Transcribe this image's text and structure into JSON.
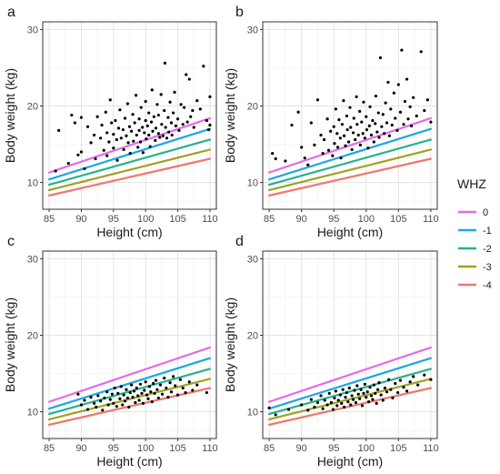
{
  "chart_data": [
    {
      "panel": "a",
      "type": "scatter",
      "xlabel": "Height (cm)",
      "ylabel": "Body weight (kg)",
      "xlim": [
        84,
        111
      ],
      "ylim": [
        6.5,
        31
      ],
      "xticks": [
        85,
        90,
        95,
        100,
        105,
        110
      ],
      "yticks": [
        10,
        20,
        30
      ],
      "grid": true,
      "points": [
        [
          86.5,
          16.8
        ],
        [
          86,
          11.5
        ],
        [
          88,
          12.5
        ],
        [
          88.5,
          18.8
        ],
        [
          89,
          17.8
        ],
        [
          89.5,
          13.6
        ],
        [
          90,
          18.5
        ],
        [
          90,
          14
        ],
        [
          90.5,
          11.8
        ],
        [
          91,
          17.3
        ],
        [
          91.5,
          15.2
        ],
        [
          92,
          16.2
        ],
        [
          92.2,
          13.1
        ],
        [
          92.5,
          18.6
        ],
        [
          93,
          15.8
        ],
        [
          93.2,
          17.5
        ],
        [
          93.5,
          14.2
        ],
        [
          93.8,
          19.2
        ],
        [
          94,
          16.5
        ],
        [
          94,
          13.5
        ],
        [
          94.3,
          15.3
        ],
        [
          94.5,
          20.8
        ],
        [
          94.7,
          17.8
        ],
        [
          95,
          16.3
        ],
        [
          95,
          14.5
        ],
        [
          95.3,
          18.1
        ],
        [
          95.5,
          15.6
        ],
        [
          95.6,
          12.9
        ],
        [
          95.8,
          17.1
        ],
        [
          96,
          19.5
        ],
        [
          96.2,
          15.8
        ],
        [
          96.5,
          16.9
        ],
        [
          96.6,
          14.3
        ],
        [
          96.8,
          18.4
        ],
        [
          97,
          16.1
        ],
        [
          97.2,
          20.3
        ],
        [
          97.3,
          15.2
        ],
        [
          97.5,
          17.3
        ],
        [
          97.6,
          13.8
        ],
        [
          97.8,
          16.7
        ],
        [
          98,
          18.9
        ],
        [
          98.1,
          15.4
        ],
        [
          98.3,
          17.8
        ],
        [
          98.5,
          21.4
        ],
        [
          98.6,
          16.2
        ],
        [
          98.8,
          14.6
        ],
        [
          99,
          18.3
        ],
        [
          99,
          16.8
        ],
        [
          99.2,
          15.3
        ],
        [
          99.3,
          19.8
        ],
        [
          99.5,
          17.2
        ],
        [
          99.6,
          13.9
        ],
        [
          99.8,
          16.5
        ],
        [
          100,
          20.6
        ],
        [
          100,
          18.1
        ],
        [
          100.1,
          15.7
        ],
        [
          100.3,
          17.4
        ],
        [
          100.5,
          19.1
        ],
        [
          100.5,
          16.2
        ],
        [
          100.7,
          14.7
        ],
        [
          100.9,
          17.9
        ],
        [
          101,
          22.1
        ],
        [
          101.1,
          16.7
        ],
        [
          101.3,
          18.6
        ],
        [
          101.5,
          15.5
        ],
        [
          101.6,
          17.1
        ],
        [
          101.8,
          20.2
        ],
        [
          102,
          16.4
        ],
        [
          102,
          18.8
        ],
        [
          102.2,
          15.9
        ],
        [
          102.4,
          21.5
        ],
        [
          102.5,
          17.6
        ],
        [
          102.7,
          16.1
        ],
        [
          102.9,
          19.4
        ],
        [
          103,
          25.6
        ],
        [
          103.1,
          17.2
        ],
        [
          103.3,
          15.8
        ],
        [
          103.5,
          18.5
        ],
        [
          103.6,
          16.6
        ],
        [
          103.8,
          20.5
        ],
        [
          104,
          17.8
        ],
        [
          104.1,
          16.2
        ],
        [
          104.3,
          19.1
        ],
        [
          104.5,
          21.8
        ],
        [
          104.7,
          17.4
        ],
        [
          105,
          18.3
        ],
        [
          105.2,
          16.8
        ],
        [
          105.5,
          20.2
        ],
        [
          105.8,
          17.6
        ],
        [
          106,
          19.8
        ],
        [
          106.3,
          24.1
        ],
        [
          106.5,
          17.9
        ],
        [
          106.8,
          23.5
        ],
        [
          107,
          18.6
        ],
        [
          107.3,
          19.4
        ],
        [
          107.5,
          17.2
        ],
        [
          108,
          20.7
        ],
        [
          108.5,
          19.6
        ],
        [
          109,
          25.2
        ],
        [
          109.5,
          18.1
        ],
        [
          109.8,
          16.9
        ],
        [
          110,
          21.2
        ],
        [
          110,
          17.5
        ]
      ]
    },
    {
      "panel": "b",
      "type": "scatter",
      "xlabel": "Height (cm)",
      "ylabel": "Body weight (kg)",
      "xlim": [
        84,
        111
      ],
      "ylim": [
        6.5,
        31
      ],
      "xticks": [
        85,
        90,
        95,
        100,
        105,
        110
      ],
      "yticks": [
        10,
        20,
        30
      ],
      "grid": true,
      "points": [
        [
          85.5,
          13.8
        ],
        [
          86,
          13.1
        ],
        [
          87.5,
          12.8
        ],
        [
          88.5,
          17.5
        ],
        [
          89.5,
          19.2
        ],
        [
          90,
          14.6
        ],
        [
          90.5,
          13.2
        ],
        [
          91,
          12.3
        ],
        [
          91.5,
          17.8
        ],
        [
          92,
          14.9
        ],
        [
          92.5,
          20.8
        ],
        [
          93,
          16.2
        ],
        [
          93.3,
          13.8
        ],
        [
          93.5,
          15.6
        ],
        [
          94,
          18.3
        ],
        [
          94.2,
          14.2
        ],
        [
          94.5,
          16.7
        ],
        [
          94.8,
          13.5
        ],
        [
          95,
          17.3
        ],
        [
          95.1,
          15.1
        ],
        [
          95.3,
          19.6
        ],
        [
          95.5,
          16.4
        ],
        [
          95.6,
          14.6
        ],
        [
          95.8,
          18.2
        ],
        [
          96,
          15.8
        ],
        [
          96.1,
          13.2
        ],
        [
          96.3,
          17.6
        ],
        [
          96.5,
          20.7
        ],
        [
          96.6,
          16.1
        ],
        [
          96.8,
          14.8
        ],
        [
          97,
          18.7
        ],
        [
          97.1,
          16.9
        ],
        [
          97.3,
          15.3
        ],
        [
          97.5,
          19.8
        ],
        [
          97.6,
          17.2
        ],
        [
          97.8,
          14.3
        ],
        [
          98,
          16.5
        ],
        [
          98.1,
          18.4
        ],
        [
          98.3,
          15.6
        ],
        [
          98.5,
          21.2
        ],
        [
          98.6,
          17.6
        ],
        [
          98.8,
          16.2
        ],
        [
          99,
          19.3
        ],
        [
          99.1,
          14.9
        ],
        [
          99.3,
          17.9
        ],
        [
          99.5,
          16.4
        ],
        [
          99.6,
          20.5
        ],
        [
          99.8,
          15.8
        ],
        [
          100,
          18.6
        ],
        [
          100.1,
          16.9
        ],
        [
          100.3,
          14.5
        ],
        [
          100.5,
          17.4
        ],
        [
          100.6,
          19.9
        ],
        [
          100.8,
          16.2
        ],
        [
          101,
          18.1
        ],
        [
          101.2,
          15.3
        ],
        [
          101.4,
          17.7
        ],
        [
          101.5,
          21.3
        ],
        [
          101.7,
          16.6
        ],
        [
          101.9,
          19.1
        ],
        [
          102,
          15.9
        ],
        [
          102.2,
          26.3
        ],
        [
          102.4,
          17.3
        ],
        [
          102.6,
          18.9
        ],
        [
          102.8,
          16.4
        ],
        [
          103,
          20.4
        ],
        [
          103.2,
          17.8
        ],
        [
          103.4,
          23.1
        ],
        [
          103.6,
          16.1
        ],
        [
          103.8,
          19.6
        ],
        [
          104,
          17.5
        ],
        [
          104.3,
          21.7
        ],
        [
          104.5,
          18.4
        ],
        [
          104.8,
          16.8
        ],
        [
          105,
          22.8
        ],
        [
          105.3,
          19.2
        ],
        [
          105.5,
          27.3
        ],
        [
          105.8,
          17.6
        ],
        [
          106,
          20.6
        ],
        [
          106.3,
          23.5
        ],
        [
          106.5,
          18.3
        ],
        [
          106.8,
          19.9
        ],
        [
          107,
          17.4
        ],
        [
          107.3,
          21.1
        ],
        [
          107.8,
          18.7
        ],
        [
          108.5,
          27.1
        ],
        [
          109,
          19.4
        ],
        [
          109.5,
          20.8
        ],
        [
          110,
          17.9
        ]
      ]
    },
    {
      "panel": "c",
      "type": "scatter",
      "xlabel": "Height (cm)",
      "ylabel": "Body weight (kg)",
      "xlim": [
        84,
        111
      ],
      "ylim": [
        6.5,
        31
      ],
      "xticks": [
        85,
        90,
        95,
        100,
        105,
        110
      ],
      "yticks": [
        10,
        20,
        30
      ],
      "grid": true,
      "points": [
        [
          89.5,
          12.3
        ],
        [
          90,
          10.9
        ],
        [
          90.5,
          11.5
        ],
        [
          91,
          10.3
        ],
        [
          91.5,
          11.9
        ],
        [
          92,
          11.1
        ],
        [
          92.3,
          10.6
        ],
        [
          92.6,
          12.1
        ],
        [
          93,
          11.4
        ],
        [
          93.3,
          10.2
        ],
        [
          93.6,
          11.8
        ],
        [
          94,
          12.6
        ],
        [
          94.2,
          10.9
        ],
        [
          94.5,
          11.6
        ],
        [
          94.8,
          12.3
        ],
        [
          95,
          11.1
        ],
        [
          95.2,
          13.1
        ],
        [
          95.5,
          10.7
        ],
        [
          95.7,
          12.4
        ],
        [
          96,
          11.7
        ],
        [
          96.2,
          13.3
        ],
        [
          96.4,
          10.9
        ],
        [
          96.6,
          12.2
        ],
        [
          96.8,
          11.4
        ],
        [
          97,
          12.9
        ],
        [
          97.2,
          11.8
        ],
        [
          97.4,
          10.6
        ],
        [
          97.6,
          12.5
        ],
        [
          97.8,
          13.5
        ],
        [
          98,
          11.9
        ],
        [
          98.2,
          12.7
        ],
        [
          98.4,
          11.2
        ],
        [
          98.6,
          13.1
        ],
        [
          98.8,
          12.1
        ],
        [
          99,
          11.5
        ],
        [
          99.2,
          13.6
        ],
        [
          99.4,
          12.4
        ],
        [
          99.6,
          11.1
        ],
        [
          99.8,
          12.8
        ],
        [
          100,
          13.9
        ],
        [
          100.2,
          12.2
        ],
        [
          100.4,
          11.7
        ],
        [
          100.6,
          13.3
        ],
        [
          100.8,
          12.6
        ],
        [
          101,
          11.3
        ],
        [
          101.2,
          13.7
        ],
        [
          101.4,
          12.4
        ],
        [
          101.6,
          14.1
        ],
        [
          101.8,
          12.9
        ],
        [
          102,
          11.8
        ],
        [
          102.3,
          13.5
        ],
        [
          102.6,
          12.3
        ],
        [
          102.9,
          14.4
        ],
        [
          103.2,
          13.1
        ],
        [
          103.5,
          11.9
        ],
        [
          103.8,
          13.8
        ],
        [
          104,
          12.6
        ],
        [
          104.3,
          14.6
        ],
        [
          104.6,
          13.4
        ],
        [
          105,
          12.2
        ],
        [
          105.4,
          14.2
        ],
        [
          105.8,
          13.1
        ],
        [
          106.2,
          12.5
        ],
        [
          106.8,
          13.9
        ],
        [
          107.3,
          12.8
        ],
        [
          108,
          13.5
        ],
        [
          109.5,
          12.5
        ]
      ]
    },
    {
      "panel": "d",
      "type": "scatter",
      "xlabel": "Height (cm)",
      "ylabel": "Body weight (kg)",
      "xlim": [
        84,
        111
      ],
      "ylim": [
        6.5,
        31
      ],
      "xticks": [
        85,
        90,
        95,
        100,
        105,
        110
      ],
      "yticks": [
        10,
        20,
        30
      ],
      "grid": true,
      "points": [
        [
          85,
          10.5
        ],
        [
          86,
          9.6
        ],
        [
          88,
          10.3
        ],
        [
          90,
          10.9
        ],
        [
          91,
          10.2
        ],
        [
          91.5,
          11.6
        ],
        [
          92,
          10.6
        ],
        [
          92.5,
          11.2
        ],
        [
          93,
          12.1
        ],
        [
          93.3,
          10.4
        ],
        [
          93.6,
          11.5
        ],
        [
          94,
          10.9
        ],
        [
          94.3,
          12.4
        ],
        [
          94.6,
          11.2
        ],
        [
          94.9,
          10.3
        ],
        [
          95.1,
          11.8
        ],
        [
          95.3,
          12.7
        ],
        [
          95.5,
          10.8
        ],
        [
          95.7,
          11.5
        ],
        [
          96,
          12.2
        ],
        [
          96.2,
          11.1
        ],
        [
          96.4,
          12.9
        ],
        [
          96.6,
          10.6
        ],
        [
          96.8,
          11.9
        ],
        [
          97,
          12.5
        ],
        [
          97.2,
          11.3
        ],
        [
          97.4,
          13.1
        ],
        [
          97.6,
          10.9
        ],
        [
          97.8,
          12.1
        ],
        [
          98,
          11.6
        ],
        [
          98.2,
          12.8
        ],
        [
          98.4,
          11.2
        ],
        [
          98.6,
          13.4
        ],
        [
          98.8,
          12.3
        ],
        [
          99,
          11.7
        ],
        [
          99.2,
          12.9
        ],
        [
          99.4,
          10.8
        ],
        [
          99.6,
          12.4
        ],
        [
          99.8,
          13.6
        ],
        [
          100,
          11.9
        ],
        [
          100.2,
          12.6
        ],
        [
          100.4,
          11.3
        ],
        [
          100.6,
          13.2
        ],
        [
          100.8,
          12.1
        ],
        [
          101,
          11.6
        ],
        [
          101.2,
          13.5
        ],
        [
          101.4,
          12.4
        ],
        [
          101.6,
          11.1
        ],
        [
          101.8,
          12.9
        ],
        [
          102,
          13.8
        ],
        [
          102.3,
          12.2
        ],
        [
          102.6,
          11.5
        ],
        [
          102.9,
          13.1
        ],
        [
          103.2,
          12.6
        ],
        [
          103.5,
          14.2
        ],
        [
          103.8,
          12.9
        ],
        [
          104.1,
          11.8
        ],
        [
          104.5,
          13.7
        ],
        [
          104.9,
          12.5
        ],
        [
          105.3,
          14.1
        ],
        [
          105.8,
          13.2
        ],
        [
          106.3,
          12.7
        ],
        [
          106.8,
          13.9
        ],
        [
          107.3,
          14.6
        ],
        [
          108,
          13.5
        ],
        [
          109,
          14.8
        ],
        [
          110,
          14.2
        ]
      ]
    }
  ],
  "panel_letters": [
    "a",
    "b",
    "c",
    "d"
  ],
  "reference_lines": {
    "x_range": [
      85,
      110
    ],
    "lines": [
      {
        "label": "0",
        "color": "#E36BE5",
        "y": [
          11.3,
          18.4
        ]
      },
      {
        "label": "-1",
        "color": "#1EA6E4",
        "y": [
          10.4,
          17.0
        ]
      },
      {
        "label": "-2",
        "color": "#25B28F",
        "y": [
          9.7,
          15.6
        ]
      },
      {
        "label": "-3",
        "color": "#9FA122",
        "y": [
          9.0,
          14.3
        ]
      },
      {
        "label": "-4",
        "color": "#F0776B",
        "y": [
          8.3,
          13.1
        ]
      }
    ]
  },
  "legend": {
    "title": "WHZ",
    "items": [
      {
        "label": "0",
        "color": "#E36BE5"
      },
      {
        "label": "-1",
        "color": "#1EA6E4"
      },
      {
        "label": "-2",
        "color": "#25B28F"
      },
      {
        "label": "-3",
        "color": "#9FA122"
      },
      {
        "label": "-4",
        "color": "#F0776B"
      }
    ]
  }
}
